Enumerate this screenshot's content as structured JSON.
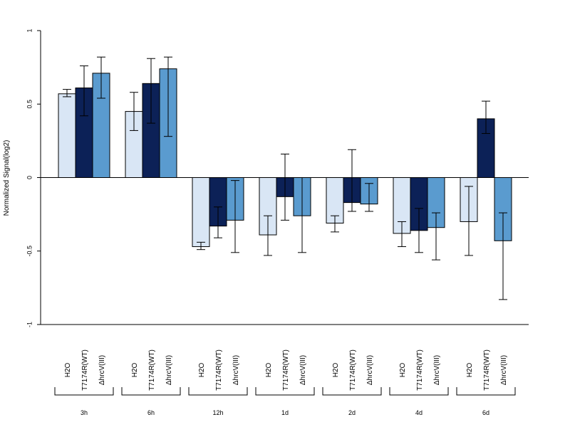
{
  "chart_data": {
    "type": "bar",
    "ylabel": "Normalized Signal(log2)",
    "ylim": [
      -1,
      1
    ],
    "yticks": [
      {
        "value": 1,
        "label": "1"
      },
      {
        "value": 0.5,
        "label": "0.5"
      },
      {
        "value": 0,
        "label": "0"
      },
      {
        "value": -0.5,
        "label": "-0.5"
      },
      {
        "value": -1,
        "label": "-1"
      }
    ],
    "groups": [
      "3h",
      "6h",
      "12h",
      "1d",
      "2d",
      "4d",
      "6d"
    ],
    "series": [
      {
        "name": "H2O",
        "color": "#d9e6f5",
        "values": [
          0.57,
          0.45,
          -0.47,
          -0.39,
          -0.31,
          -0.38,
          -0.3
        ],
        "err_low": [
          0.55,
          0.32,
          -0.49,
          -0.53,
          -0.37,
          -0.47,
          -0.53
        ],
        "err_high": [
          0.6,
          0.58,
          -0.44,
          -0.26,
          -0.26,
          -0.3,
          -0.06
        ]
      },
      {
        "name": "T7174R(WT)",
        "color": "#0c2157",
        "values": [
          0.61,
          0.64,
          -0.33,
          -0.13,
          -0.17,
          -0.36,
          0.4
        ],
        "err_low": [
          0.42,
          0.37,
          -0.41,
          -0.29,
          -0.23,
          -0.51,
          0.3
        ],
        "err_high": [
          0.76,
          0.81,
          -0.2,
          0.16,
          0.19,
          -0.21,
          0.52
        ]
      },
      {
        "name": "ΔhrcV(III)",
        "color": "#5a9bcf",
        "values": [
          0.71,
          0.74,
          -0.29,
          -0.26,
          -0.18,
          -0.34,
          -0.43
        ],
        "err_low": [
          0.54,
          0.28,
          -0.51,
          -0.51,
          -0.23,
          -0.56,
          -0.83
        ],
        "err_high": [
          0.82,
          0.82,
          -0.02,
          0.0,
          -0.04,
          -0.24,
          -0.24
        ]
      }
    ]
  }
}
